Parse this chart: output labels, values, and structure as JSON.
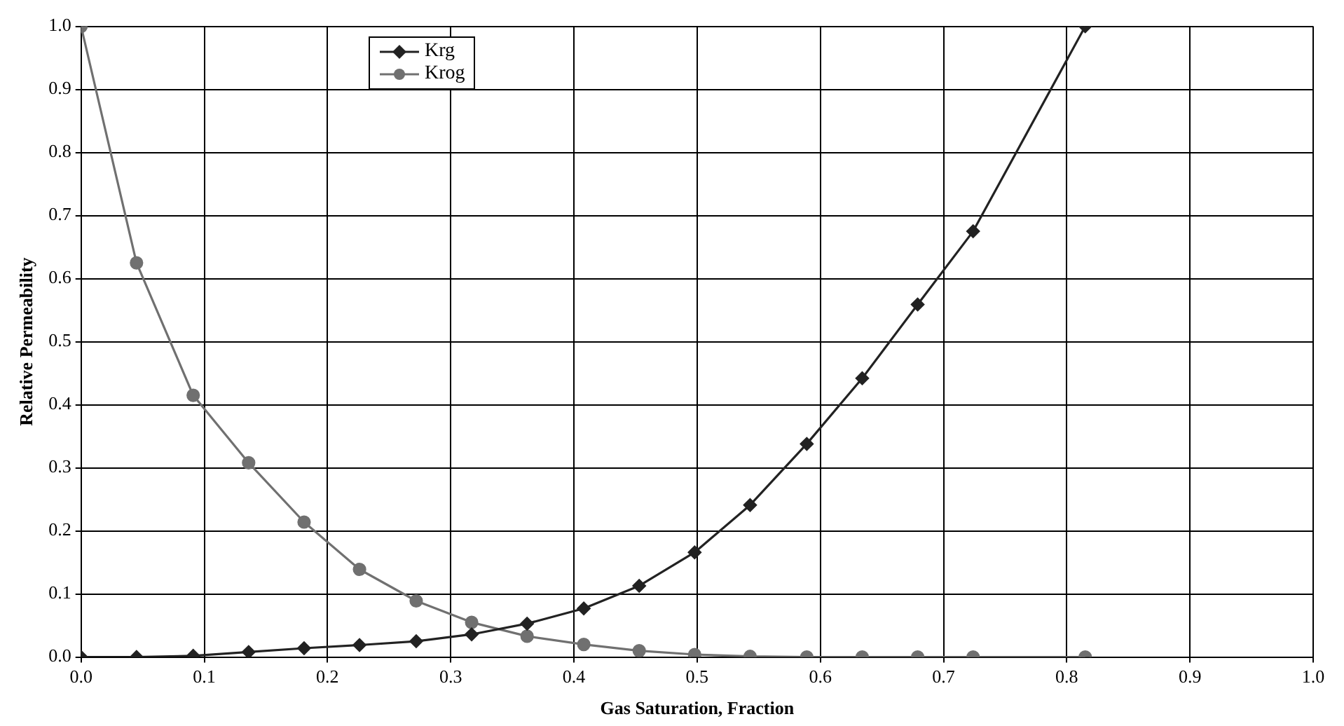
{
  "chart_data": {
    "type": "line",
    "xlabel": "Gas Saturation, Fraction",
    "ylabel": "Relative Permeability",
    "x": [
      0,
      0.045,
      0.091,
      0.136,
      0.181,
      0.226,
      0.272,
      0.317,
      0.362,
      0.408,
      0.453,
      0.498,
      0.543,
      0.589,
      0.634,
      0.679,
      0.724,
      0.815
    ],
    "series": [
      {
        "name": "Krg",
        "color": "#222222",
        "marker": "diamond",
        "values": [
          0,
          0,
          0.002,
          0.008,
          0.014,
          0.019,
          0.025,
          0.036,
          0.053,
          0.077,
          0.113,
          0.166,
          0.241,
          0.338,
          0.442,
          0.559,
          0.675,
          1.0
        ]
      },
      {
        "name": "Krog",
        "color": "#707070",
        "marker": "circle",
        "values": [
          1.0,
          0.625,
          0.415,
          0.308,
          0.214,
          0.139,
          0.089,
          0.055,
          0.033,
          0.02,
          0.01,
          0.004,
          0.001,
          0,
          0,
          0,
          0,
          0
        ]
      }
    ],
    "xlim": [
      0,
      1
    ],
    "xticks": [
      {
        "value": 0,
        "label": "0.0"
      },
      0.1,
      0.2,
      0.3,
      0.4,
      0.5,
      0.6,
      0.7,
      0.8,
      0.9,
      {
        "value": 1,
        "label": "1.0"
      }
    ],
    "ylim": [
      0,
      1
    ],
    "yticks": [
      {
        "value": 0,
        "label": "0.0"
      },
      0.1,
      0.2,
      0.3,
      0.4,
      0.5,
      0.6,
      0.7,
      0.8,
      0.9,
      {
        "value": 1,
        "label": "1.0"
      }
    ],
    "grid": true,
    "legend": "top left",
    "line_style": "solid"
  }
}
